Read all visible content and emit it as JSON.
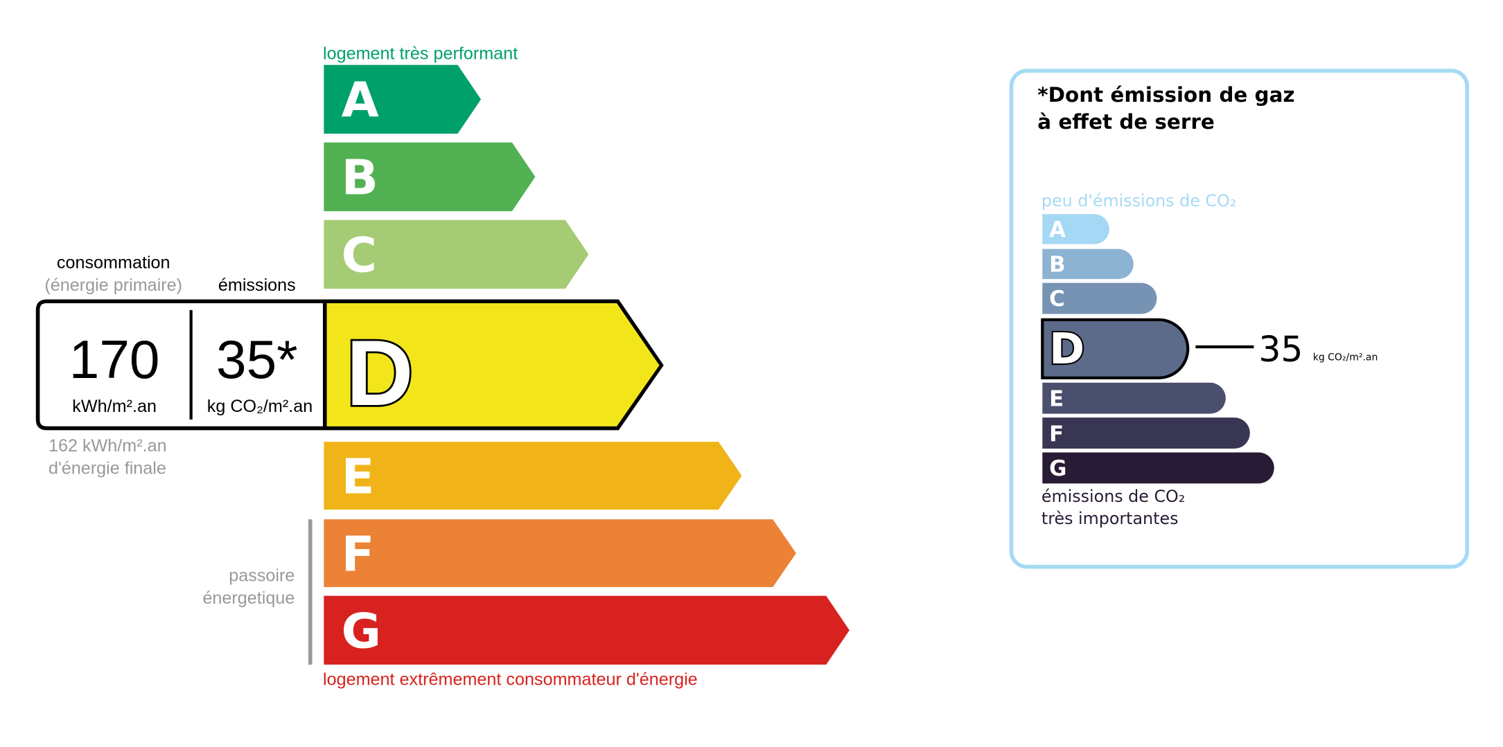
{
  "energy": {
    "top_label": "logement très performant",
    "bottom_label": "logement extrêmement consommateur d'énergie",
    "classes": [
      {
        "letter": "A",
        "color": "#00a06b"
      },
      {
        "letter": "B",
        "color": "#52b153"
      },
      {
        "letter": "C",
        "color": "#a5cc74"
      },
      {
        "letter": "D",
        "color": "#f2e61b"
      },
      {
        "letter": "E",
        "color": "#f0b418"
      },
      {
        "letter": "F",
        "color": "#eb8235"
      },
      {
        "letter": "G",
        "color": "#d7221f"
      }
    ],
    "current_class": "D",
    "consumption_label": "consommation",
    "consumption_sub": "(énergie primaire)",
    "emissions_label": "émissions",
    "consumption_value": "170",
    "consumption_unit": "kWh/m².an",
    "emissions_value": "35*",
    "emissions_unit": "kg CO₂/m².an",
    "final_energy_value": "162 kWh/m².an",
    "final_energy_label": "d'énergie finale",
    "passoire_line1": "passoire",
    "passoire_line2": "énergetique"
  },
  "ges": {
    "title_line1": "*Dont émission de gaz",
    "title_line2": "à effet de serre",
    "top_label": "peu d'émissions de CO₂",
    "bottom_line1": "émissions de CO₂",
    "bottom_line2": "très importantes",
    "classes": [
      {
        "letter": "A",
        "color": "#a4d8f4"
      },
      {
        "letter": "B",
        "color": "#8db3d3"
      },
      {
        "letter": "C",
        "color": "#7693b4"
      },
      {
        "letter": "D",
        "color": "#5d6b8b"
      },
      {
        "letter": "E",
        "color": "#4b4f6e"
      },
      {
        "letter": "F",
        "color": "#393654"
      },
      {
        "letter": "G",
        "color": "#281b35"
      }
    ],
    "current_class": "D",
    "value": "35",
    "unit": "kg CO₂/m².an",
    "border_color": "#a6daf4"
  }
}
